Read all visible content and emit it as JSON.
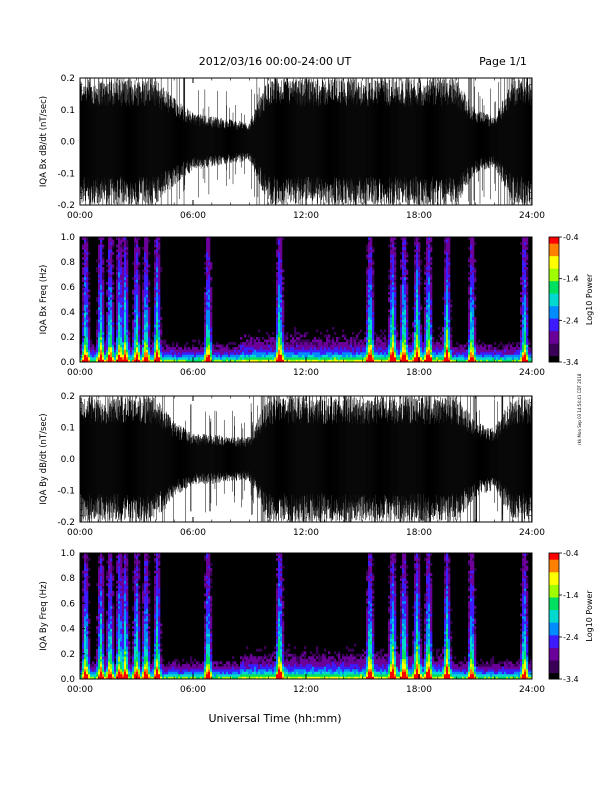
{
  "header": {
    "date_title": "2012/03/16  00:00-24:00 UT",
    "page": "Page 1/1"
  },
  "side_stamp": "rkk Mon Sep 03 14:54:41 CDT 2018",
  "footer": {
    "xlabel": "Universal Time (hh:mm)"
  },
  "colors": {
    "colormap": [
      "#000000",
      "#3a0058",
      "#6a0099",
      "#3c1cff",
      "#008cff",
      "#00d8d0",
      "#00e060",
      "#a0ff00",
      "#ffff00",
      "#ff8000",
      "#ff0000"
    ]
  },
  "chart_data": [
    {
      "type": "line",
      "panel": "IQA Bx dB/dt",
      "ylabel": "IQA Bx dB/dt (nT/sec)",
      "x_ticks": [
        "00:00",
        "06:00",
        "12:00",
        "18:00",
        "24:00"
      ],
      "xlim_hours": [
        0,
        24
      ],
      "ylim": [
        -0.2,
        0.2
      ],
      "y_ticks": [
        "-0.2",
        "-0.1",
        "0.0",
        "0.1",
        "0.2"
      ],
      "envelope": {
        "hours": [
          0,
          1,
          2,
          2.5,
          3,
          4,
          5,
          6,
          7,
          8,
          9,
          10,
          10.5,
          11,
          12,
          13,
          14,
          15,
          16,
          17,
          17.5,
          18,
          19,
          20,
          21,
          22,
          23,
          24
        ],
        "amplitude": [
          0.2,
          0.2,
          0.2,
          0.2,
          0.2,
          0.2,
          0.14,
          0.09,
          0.08,
          0.07,
          0.06,
          0.2,
          0.2,
          0.2,
          0.2,
          0.2,
          0.2,
          0.2,
          0.2,
          0.2,
          0.2,
          0.2,
          0.2,
          0.2,
          0.1,
          0.08,
          0.2,
          0.2
        ]
      }
    },
    {
      "type": "heatmap",
      "panel": "IQA Bx Freq",
      "ylabel": "IQA Bx Freq (Hz)",
      "x_ticks": [
        "00:00",
        "06:00",
        "12:00",
        "18:00",
        "24:00"
      ],
      "xlim_hours": [
        0,
        24
      ],
      "ylim": [
        0.0,
        1.0
      ],
      "y_ticks": [
        "0.0",
        "0.2",
        "0.4",
        "0.6",
        "0.8",
        "1.0"
      ],
      "colorbar": {
        "label": "Log10 Power",
        "range": [
          -3.4,
          -0.4
        ],
        "ticks": [
          "-0.4",
          "-1.4",
          "-2.4",
          "-3.4"
        ]
      },
      "bursts_hours": [
        0.3,
        1.1,
        1.6,
        2.1,
        2.4,
        3.0,
        3.5,
        4.1,
        6.8,
        10.6,
        15.4,
        16.6,
        17.2,
        17.9,
        18.5,
        19.5,
        20.8,
        23.6
      ]
    },
    {
      "type": "line",
      "panel": "IQA By dB/dt",
      "ylabel": "IQA By dB/dt (nT/sec)",
      "x_ticks": [
        "00:00",
        "06:00",
        "12:00",
        "18:00",
        "24:00"
      ],
      "xlim_hours": [
        0,
        24
      ],
      "ylim": [
        -0.2,
        0.2
      ],
      "y_ticks": [
        "-0.2",
        "-0.1",
        "0.0",
        "0.1",
        "0.2"
      ],
      "envelope": {
        "hours": [
          0,
          1,
          2,
          2.5,
          3,
          4,
          5,
          6,
          7,
          8,
          9,
          10,
          10.5,
          11,
          12,
          13,
          14,
          15,
          16,
          17,
          17.5,
          18,
          19,
          20,
          21,
          22,
          23,
          24
        ],
        "amplitude": [
          0.2,
          0.2,
          0.2,
          0.2,
          0.2,
          0.2,
          0.12,
          0.08,
          0.08,
          0.07,
          0.07,
          0.2,
          0.2,
          0.2,
          0.2,
          0.2,
          0.2,
          0.2,
          0.2,
          0.2,
          0.2,
          0.2,
          0.2,
          0.2,
          0.12,
          0.1,
          0.2,
          0.2
        ]
      }
    },
    {
      "type": "heatmap",
      "panel": "IQA By Freq",
      "ylabel": "IQA By Freq (Hz)",
      "x_ticks": [
        "00:00",
        "06:00",
        "12:00",
        "18:00",
        "24:00"
      ],
      "xlim_hours": [
        0,
        24
      ],
      "ylim": [
        0.0,
        1.0
      ],
      "y_ticks": [
        "0.0",
        "0.2",
        "0.4",
        "0.6",
        "0.8",
        "1.0"
      ],
      "colorbar": {
        "label": "Log10 Power",
        "range": [
          -3.4,
          -0.4
        ],
        "ticks": [
          "-0.4",
          "-1.4",
          "-2.4",
          "-3.4"
        ]
      },
      "bursts_hours": [
        0.3,
        1.1,
        1.6,
        2.1,
        2.4,
        3.0,
        3.5,
        4.1,
        6.8,
        10.6,
        15.4,
        16.6,
        17.2,
        17.9,
        18.5,
        19.5,
        20.8,
        23.6
      ]
    }
  ]
}
